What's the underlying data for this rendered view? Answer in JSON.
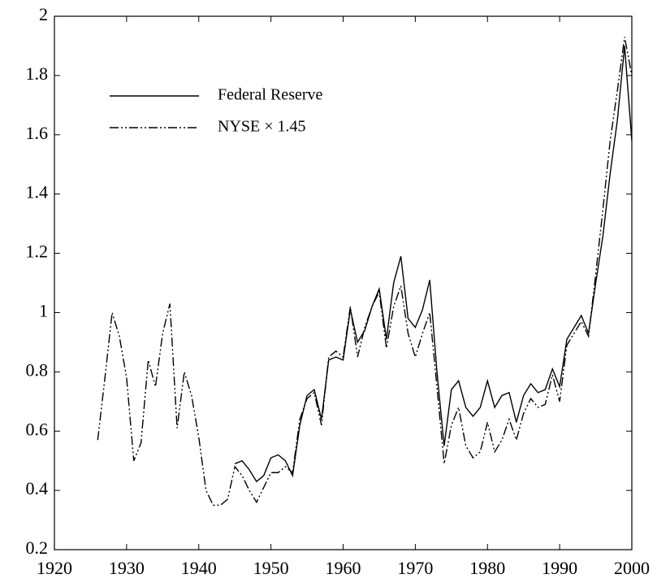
{
  "chart_data": {
    "type": "line",
    "x": [
      1926,
      1927,
      1928,
      1929,
      1930,
      1931,
      1932,
      1933,
      1934,
      1935,
      1936,
      1937,
      1938,
      1939,
      1940,
      1941,
      1942,
      1943,
      1944,
      1945,
      1946,
      1947,
      1948,
      1949,
      1950,
      1951,
      1952,
      1953,
      1954,
      1955,
      1956,
      1957,
      1958,
      1959,
      1960,
      1961,
      1962,
      1963,
      1964,
      1965,
      1966,
      1967,
      1968,
      1969,
      1970,
      1971,
      1972,
      1973,
      1974,
      1975,
      1976,
      1977,
      1978,
      1979,
      1980,
      1981,
      1982,
      1983,
      1984,
      1985,
      1986,
      1987,
      1988,
      1989,
      1990,
      1991,
      1992,
      1993,
      1994,
      1995,
      1996,
      1997,
      1998,
      1999,
      2000
    ],
    "series": [
      {
        "name": "Federal Reserve",
        "color": "#000000",
        "dash": "solid",
        "values": [
          null,
          null,
          null,
          null,
          null,
          null,
          null,
          null,
          null,
          null,
          null,
          null,
          null,
          null,
          null,
          null,
          null,
          null,
          null,
          0.49,
          0.5,
          0.47,
          0.43,
          0.45,
          0.51,
          0.52,
          0.5,
          0.45,
          0.62,
          0.72,
          0.74,
          0.64,
          0.84,
          0.85,
          0.84,
          1.01,
          0.9,
          0.94,
          1.02,
          1.08,
          0.91,
          1.1,
          1.19,
          0.98,
          0.95,
          1.01,
          1.11,
          0.8,
          0.55,
          0.74,
          0.77,
          0.68,
          0.65,
          0.68,
          0.77,
          0.68,
          0.72,
          0.73,
          0.63,
          0.72,
          0.76,
          0.73,
          0.74,
          0.81,
          0.75,
          0.91,
          0.95,
          0.99,
          0.93,
          1.1,
          1.26,
          1.47,
          1.65,
          1.9,
          1.58
        ]
      },
      {
        "name": "NYSE × 1.45",
        "color": "#000000",
        "dash": "dash-dot-dot",
        "values": [
          0.57,
          0.78,
          1.0,
          0.92,
          0.78,
          0.5,
          0.56,
          0.84,
          0.75,
          0.93,
          1.03,
          0.61,
          0.8,
          0.72,
          0.58,
          0.4,
          0.35,
          0.35,
          0.37,
          0.48,
          0.45,
          0.4,
          0.36,
          0.41,
          0.46,
          0.46,
          0.48,
          0.46,
          0.64,
          0.71,
          0.73,
          0.62,
          0.85,
          0.87,
          0.85,
          1.02,
          0.85,
          0.95,
          1.02,
          1.07,
          0.88,
          1.02,
          1.09,
          0.93,
          0.85,
          0.93,
          1.0,
          0.75,
          0.49,
          0.62,
          0.68,
          0.55,
          0.51,
          0.53,
          0.63,
          0.53,
          0.57,
          0.64,
          0.57,
          0.66,
          0.71,
          0.68,
          0.69,
          0.79,
          0.7,
          0.89,
          0.93,
          0.97,
          0.92,
          1.13,
          1.35,
          1.58,
          1.75,
          1.93,
          1.8
        ]
      }
    ],
    "xlim": [
      1920,
      2000
    ],
    "xticks": [
      1920,
      1930,
      1940,
      1950,
      1960,
      1970,
      1980,
      1990,
      2000
    ],
    "ylim": [
      0.2,
      2
    ],
    "yticks": [
      0.2,
      0.4,
      0.6,
      0.8,
      1,
      1.2,
      1.4,
      1.6,
      1.8,
      2
    ],
    "grid": false,
    "legend": "upper-left"
  }
}
